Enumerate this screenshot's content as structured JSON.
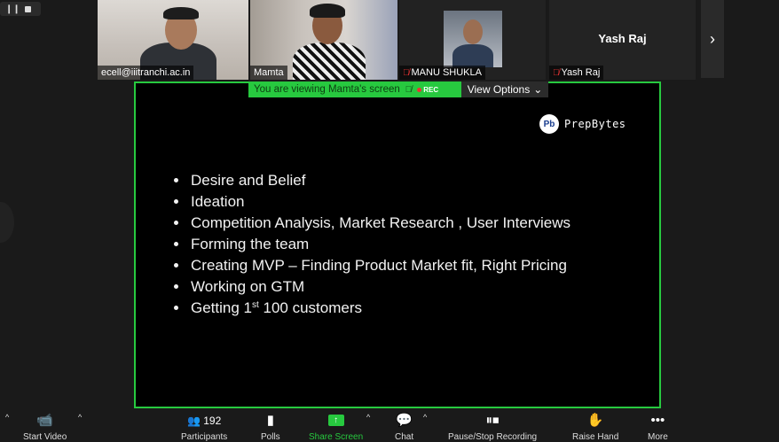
{
  "recording_mini": {
    "icon": "pause-stop-icon"
  },
  "participants_tiles": [
    {
      "name": "ecell@iiitranchi.ac.in",
      "muted": false
    },
    {
      "name": "Mamta",
      "muted": false
    },
    {
      "name": "MANU SHUKLA",
      "muted": true
    },
    {
      "name": "Yash Raj",
      "muted": true,
      "display_name": "Yash Raj"
    }
  ],
  "next_page_icon": "chevron-right-icon",
  "share_banner": {
    "text": "You are viewing Mamta's screen",
    "rec_label": "REC",
    "view_options": "View Options"
  },
  "slide": {
    "brand": "PrepBytes",
    "brand_mark": "Pb",
    "points": [
      "Desire and Belief",
      "Ideation",
      "Competition Analysis, Market Research , User Interviews",
      "Forming the team",
      "Creating MVP – Finding Product Market fit, Right Pricing",
      "Working on GTM"
    ],
    "last_point_pre": "Getting 1",
    "last_point_sup": "st",
    "last_point_post": " 100 customers"
  },
  "toolbar": {
    "start_video": "Start Video",
    "participants": "Participants",
    "participants_count": "192",
    "polls": "Polls",
    "share_screen": "Share Screen",
    "chat": "Chat",
    "pause_stop_recording": "Pause/Stop Recording",
    "raise_hand": "Raise Hand",
    "more": "More"
  },
  "colors": {
    "accent": "#27c93f",
    "mute": "#e33333",
    "background": "#1a1a1a"
  }
}
